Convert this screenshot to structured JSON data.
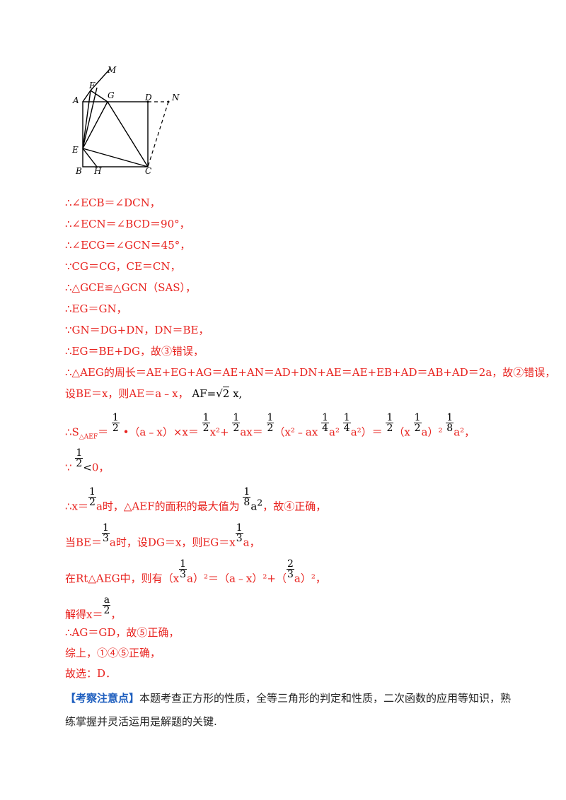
{
  "figure": {
    "labels": [
      "M",
      "F",
      "G",
      "D",
      "N",
      "A",
      "E",
      "B",
      "H",
      "C"
    ]
  },
  "lines": {
    "l1": "∴∠ECB＝∠DCN，",
    "l2": "∴∠ECN＝∠BCD＝90°，",
    "l3": "∴∠ECG＝∠GCN＝45°，",
    "l4": "∵CG＝CG，CE＝CN，",
    "l5": "∴△GCE≌△GCN（SAS），",
    "l6": "∴EG＝GN，",
    "l7": "∵GN＝DG+DN，DN＝BE，",
    "l8": "∴EG＝BE+DG，故③错误，",
    "l9": "∴△AEG的周长＝AE+EG+AG＝AE+AN＝AD+DN+AE＝AE+EB+AD＝AB+AD＝2a，故②错误，",
    "l10_a": "设BE＝x，则AE＝a﹣x，",
    "l10_b": "AF=",
    "l10_c": "2",
    "l10_d": " x,",
    "l11_a": "∴S",
    "l11_sub": "△AEF",
    "l11_b": "＝",
    "l11_c": "•（a﹣x）×x＝",
    "l11_d": "x²+",
    "l11_e": "ax＝",
    "l11_f": "（x²﹣ax",
    "l11_g": "a²",
    "l11_h": "a²）＝",
    "l11_i": "（x",
    "l11_j": "a）²",
    "l11_k": "a²，",
    "l12_a": "∵",
    "l12_b": "<",
    "l12_c": "0，",
    "l13_a": "∴x＝",
    "l13_b": "a时，△AEF的面积的最大值为",
    "l13_c": "a",
    "l13_d": "，故④正确，",
    "l14_a": "当BE＝",
    "l14_b": "a时，设DG＝x，则EG＝x",
    "l14_c": "a，",
    "l15_a": "在Rt△AEG中，则有（x",
    "l15_b": "a）²＝（a﹣x）²+（",
    "l15_c": "a）²，",
    "l16_a": "解得x＝",
    "l16_b": "，",
    "l17": "∴AG＝GD，故⑤正确，",
    "l18": "综上，①④⑤正确，",
    "l19": "故选：D．"
  },
  "fractions": {
    "half": {
      "num": "1",
      "den": "2"
    },
    "third": {
      "num": "1",
      "den": "3"
    },
    "quarter": {
      "num": "1",
      "den": "4"
    },
    "eighth": {
      "num": "1",
      "den": "8"
    },
    "two_thirds": {
      "num": "2",
      "den": "3"
    },
    "a_half": {
      "num": "a",
      "den": "2"
    }
  },
  "note": {
    "tag": "【考察注意点】",
    "text": "本题考查正方形的性质，全等三角形的判定和性质，二次函数的应用等知识，熟练掌握并灵活运用是解题的关键."
  }
}
